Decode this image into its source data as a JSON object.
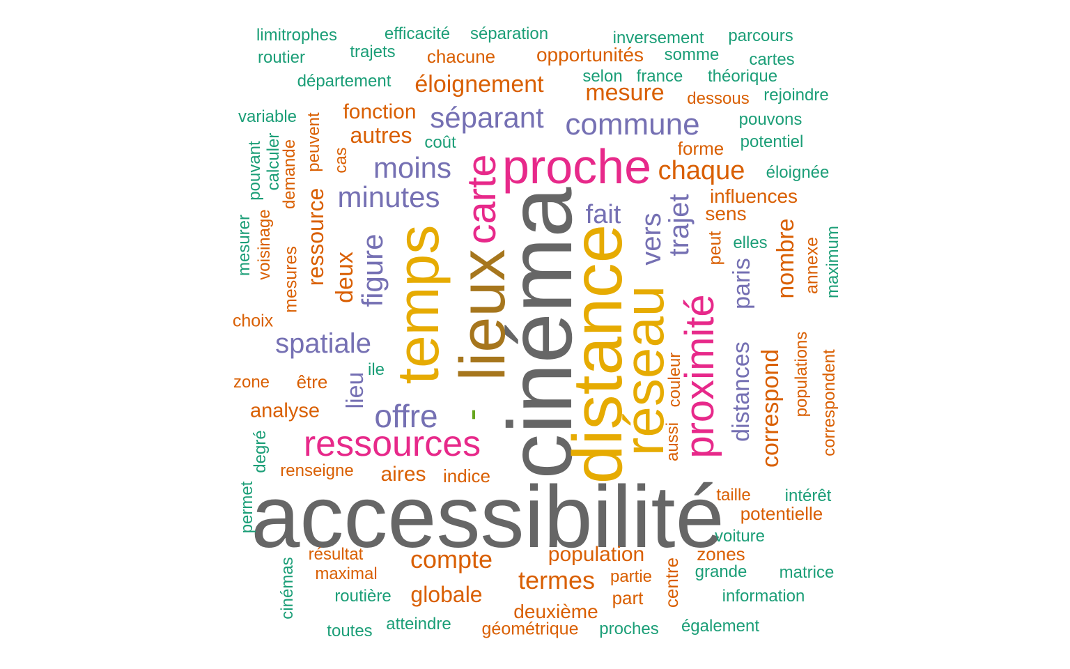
{
  "palette": {
    "gray": "#666666",
    "gold": "#E6AB02",
    "brown": "#A6761D",
    "pink": "#E7298A",
    "purple": "#7570B3",
    "orange": "#D95F02",
    "teal": "#1B9E77",
    "green": "#66A61E"
  },
  "words": [
    {
      "text": "accessibilité",
      "color": "gray",
      "weight": 1
    },
    {
      "text": "cinéma",
      "color": "gray",
      "weight": 0.95
    },
    {
      "text": "distance",
      "color": "gold",
      "weight": 0.72
    },
    {
      "text": "lieux",
      "color": "brown",
      "weight": 0.66
    },
    {
      "text": "temps",
      "color": "gold",
      "weight": 0.6
    },
    {
      "text": "réseau",
      "color": "gold",
      "weight": 0.58
    },
    {
      "text": "proximité",
      "color": "pink",
      "weight": 0.45
    },
    {
      "text": "proche",
      "color": "pink",
      "weight": 0.45
    },
    {
      "text": "carte",
      "color": "pink",
      "weight": 0.42
    },
    {
      "text": "ressources",
      "color": "pink",
      "weight": 0.38
    },
    {
      "text": "offre",
      "color": "purple",
      "weight": 0.3
    },
    {
      "text": "commune",
      "color": "purple",
      "weight": 0.28
    },
    {
      "text": "séparant",
      "color": "purple",
      "weight": 0.27
    },
    {
      "text": "moins",
      "color": "purple",
      "weight": 0.27
    },
    {
      "text": "minutes",
      "color": "purple",
      "weight": 0.27
    },
    {
      "text": "figure",
      "color": "purple",
      "weight": 0.27
    },
    {
      "text": "spatiale",
      "color": "purple",
      "weight": 0.27
    },
    {
      "text": "trajet",
      "color": "purple",
      "weight": 0.27
    },
    {
      "text": "vers",
      "color": "purple",
      "weight": 0.25
    },
    {
      "text": "fait",
      "color": "purple",
      "weight": 0.25
    },
    {
      "text": "lieu",
      "color": "purple",
      "weight": 0.24
    },
    {
      "text": "paris",
      "color": "purple",
      "weight": 0.24
    },
    {
      "text": "distances",
      "color": "purple",
      "weight": 0.22
    },
    {
      "text": "chaque",
      "color": "orange",
      "weight": 0.25
    },
    {
      "text": "compte",
      "color": "orange",
      "weight": 0.24
    },
    {
      "text": "termes",
      "color": "orange",
      "weight": 0.24
    },
    {
      "text": "mesure",
      "color": "orange",
      "weight": 0.23
    },
    {
      "text": "éloignement",
      "color": "orange",
      "weight": 0.23
    },
    {
      "text": "correspond",
      "color": "orange",
      "weight": 0.23
    },
    {
      "text": "nombre",
      "color": "orange",
      "weight": 0.23
    },
    {
      "text": "deux",
      "color": "orange",
      "weight": 0.22
    },
    {
      "text": "ressource",
      "color": "orange",
      "weight": 0.22
    },
    {
      "text": "globale",
      "color": "orange",
      "weight": 0.21
    },
    {
      "text": "autres",
      "color": "orange",
      "weight": 0.21
    },
    {
      "text": "fonction",
      "color": "orange",
      "weight": 0.2
    },
    {
      "text": "population",
      "color": "orange",
      "weight": 0.2
    },
    {
      "text": "aires",
      "color": "orange",
      "weight": 0.2
    },
    {
      "text": "analyse",
      "color": "orange",
      "weight": 0.19
    },
    {
      "text": "opportunités",
      "color": "orange",
      "weight": 0.19
    },
    {
      "text": "chacune",
      "color": "orange",
      "weight": 0.18
    },
    {
      "text": "influences",
      "color": "orange",
      "weight": 0.18
    },
    {
      "text": "sens",
      "color": "orange",
      "weight": 0.18
    },
    {
      "text": "forme",
      "color": "orange",
      "weight": 0.17
    },
    {
      "text": "deuxième",
      "color": "orange",
      "weight": 0.18
    },
    {
      "text": "être",
      "color": "orange",
      "weight": 0.17
    },
    {
      "text": "indice",
      "color": "orange",
      "weight": 0.17
    },
    {
      "text": "zones",
      "color": "orange",
      "weight": 0.17
    },
    {
      "text": "potentielle",
      "color": "orange",
      "weight": 0.17
    },
    {
      "text": "part",
      "color": "orange",
      "weight": 0.17
    },
    {
      "text": "centre",
      "color": "orange",
      "weight": 0.16
    },
    {
      "text": "choix",
      "color": "orange",
      "weight": 0.16
    },
    {
      "text": "mesures",
      "color": "orange",
      "weight": 0.16
    },
    {
      "text": "annexe",
      "color": "orange",
      "weight": 0.16
    },
    {
      "text": "géométrique",
      "color": "orange",
      "weight": 0.16
    },
    {
      "text": "peut",
      "color": "orange",
      "weight": 0.16
    },
    {
      "text": "populations",
      "color": "orange",
      "weight": 0.15
    },
    {
      "text": "correspondent",
      "color": "orange",
      "weight": 0.15
    },
    {
      "text": "taille",
      "color": "orange",
      "weight": 0.15
    },
    {
      "text": "dessous",
      "color": "orange",
      "weight": 0.15
    },
    {
      "text": "maximal",
      "color": "orange",
      "weight": 0.15
    },
    {
      "text": "résultat",
      "color": "orange",
      "weight": 0.15
    },
    {
      "text": "renseigne",
      "color": "orange",
      "weight": 0.15
    },
    {
      "text": "partie",
      "color": "orange",
      "weight": 0.14
    },
    {
      "text": "cas",
      "color": "orange",
      "weight": 0.14
    },
    {
      "text": "demande",
      "color": "orange",
      "weight": 0.14
    },
    {
      "text": "peuvent",
      "color": "orange",
      "weight": 0.14
    },
    {
      "text": "zone",
      "color": "orange",
      "weight": 0.14
    },
    {
      "text": "voisinage",
      "color": "orange",
      "weight": 0.15
    },
    {
      "text": "couleur",
      "color": "orange",
      "weight": 0.14
    },
    {
      "text": "aussi",
      "color": "orange",
      "weight": 0.14
    },
    {
      "text": "limitrophes",
      "color": "teal",
      "weight": 0.14
    },
    {
      "text": "efficacité",
      "color": "teal",
      "weight": 0.14
    },
    {
      "text": "séparation",
      "color": "teal",
      "weight": 0.14
    },
    {
      "text": "inversement",
      "color": "teal",
      "weight": 0.14
    },
    {
      "text": "parcours",
      "color": "teal",
      "weight": 0.14
    },
    {
      "text": "routier",
      "color": "teal",
      "weight": 0.14
    },
    {
      "text": "trajets",
      "color": "teal",
      "weight": 0.14
    },
    {
      "text": "somme",
      "color": "teal",
      "weight": 0.14
    },
    {
      "text": "cartes",
      "color": "teal",
      "weight": 0.14
    },
    {
      "text": "département",
      "color": "teal",
      "weight": 0.14
    },
    {
      "text": "selon",
      "color": "teal",
      "weight": 0.14
    },
    {
      "text": "france",
      "color": "teal",
      "weight": 0.14
    },
    {
      "text": "théorique",
      "color": "teal",
      "weight": 0.14
    },
    {
      "text": "rejoindre",
      "color": "teal",
      "weight": 0.14
    },
    {
      "text": "variable",
      "color": "teal",
      "weight": 0.14
    },
    {
      "text": "pouvons",
      "color": "teal",
      "weight": 0.14
    },
    {
      "text": "potentiel",
      "color": "teal",
      "weight": 0.14
    },
    {
      "text": "coût",
      "color": "teal",
      "weight": 0.14
    },
    {
      "text": "éloignée",
      "color": "teal",
      "weight": 0.14
    },
    {
      "text": "pouvant",
      "color": "teal",
      "weight": 0.14
    },
    {
      "text": "calculer",
      "color": "teal",
      "weight": 0.14
    },
    {
      "text": "mesurer",
      "color": "teal",
      "weight": 0.14
    },
    {
      "text": "elles",
      "color": "teal",
      "weight": 0.14
    },
    {
      "text": "maximum",
      "color": "teal",
      "weight": 0.14
    },
    {
      "text": "ile",
      "color": "teal",
      "weight": 0.14
    },
    {
      "text": "degré",
      "color": "teal",
      "weight": 0.14
    },
    {
      "text": "permet",
      "color": "teal",
      "weight": 0.14
    },
    {
      "text": "intérêt",
      "color": "teal",
      "weight": 0.14
    },
    {
      "text": "voiture",
      "color": "teal",
      "weight": 0.14
    },
    {
      "text": "grande",
      "color": "teal",
      "weight": 0.14
    },
    {
      "text": "matrice",
      "color": "teal",
      "weight": 0.14
    },
    {
      "text": "cinémas",
      "color": "teal",
      "weight": 0.14
    },
    {
      "text": "routière",
      "color": "teal",
      "weight": 0.14
    },
    {
      "text": "information",
      "color": "teal",
      "weight": 0.14
    },
    {
      "text": "toutes",
      "color": "teal",
      "weight": 0.14
    },
    {
      "text": "atteindre",
      "color": "teal",
      "weight": 0.14
    },
    {
      "text": "proches",
      "color": "teal",
      "weight": 0.14
    },
    {
      "text": "également",
      "color": "teal",
      "weight": 0.14
    },
    {
      "text": "-",
      "color": "green",
      "weight": 0.45
    }
  ]
}
